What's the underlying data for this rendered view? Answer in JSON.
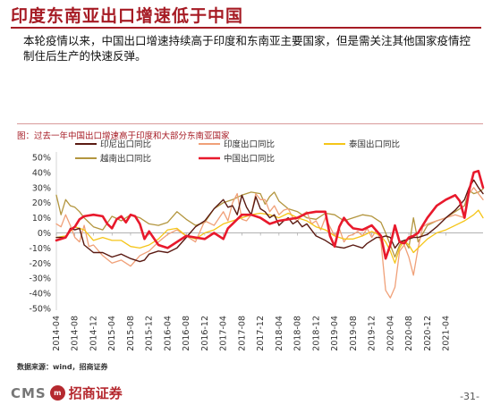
{
  "slide": {
    "title": "印度东南亚出口增速低于中国",
    "body": "本轮疫情以来，中国出口增速持续高于印度和东南亚主要国家，但是需关注其他国家疫情控制住后生产的快速反弹。",
    "source": "数据来源：wind，招商证券",
    "page_number": "-31-",
    "logo_text": "CMS",
    "logo_cn": "招商证券"
  },
  "chart_data": {
    "type": "line",
    "title": "图：过去一年中国出口增速高于印度和大部分东南亚国家",
    "y_ticks": [
      "50%",
      "40%",
      "30%",
      "20%",
      "10%",
      "0%",
      "-10%",
      "-20%",
      "-30%",
      "-40%",
      "-50%"
    ],
    "ylim": [
      -50,
      50
    ],
    "x_tick_labels": [
      "2014-04",
      "2014-08",
      "2014-12",
      "2015-04",
      "2015-08",
      "2015-12",
      "2016-04",
      "2016-08",
      "2016-12",
      "2017-04",
      "2017-08",
      "2017-12",
      "2018-04",
      "2018-08",
      "2018-12",
      "2019-04",
      "2019-08",
      "2019-12",
      "2020-04",
      "2020-08",
      "2020-12",
      "2021-04"
    ],
    "x_start": "2014-04",
    "x_end": "2021-05",
    "series": [
      {
        "name": "印尼出口同比",
        "color": "#5a1a12",
        "width": 1.4,
        "values": [
          [
            0,
            -3
          ],
          [
            2,
            -3
          ],
          [
            3,
            3
          ],
          [
            4,
            2
          ],
          [
            5,
            3
          ],
          [
            6,
            -8
          ],
          [
            8,
            -13
          ],
          [
            10,
            -13
          ],
          [
            12,
            -16
          ],
          [
            14,
            -14
          ],
          [
            16,
            -17
          ],
          [
            18,
            -19
          ],
          [
            19,
            -18
          ],
          [
            20,
            -14
          ],
          [
            22,
            -12
          ],
          [
            24,
            -13
          ],
          [
            26,
            -10
          ],
          [
            28,
            -3
          ],
          [
            30,
            4
          ],
          [
            32,
            8
          ],
          [
            34,
            16
          ],
          [
            36,
            22
          ],
          [
            37,
            17
          ],
          [
            38,
            18
          ],
          [
            39,
            12
          ],
          [
            40,
            25
          ],
          [
            41,
            17
          ],
          [
            42,
            12
          ],
          [
            43,
            24
          ],
          [
            44,
            16
          ],
          [
            45,
            14
          ],
          [
            46,
            10
          ],
          [
            47,
            12
          ],
          [
            48,
            5
          ],
          [
            49,
            8
          ],
          [
            50,
            10
          ],
          [
            51,
            6
          ],
          [
            52,
            8
          ],
          [
            53,
            4
          ],
          [
            54,
            6
          ],
          [
            56,
            -2
          ],
          [
            58,
            -5
          ],
          [
            60,
            -9
          ],
          [
            62,
            -10
          ],
          [
            64,
            -8
          ],
          [
            66,
            -10
          ],
          [
            67,
            -7
          ],
          [
            68,
            -5
          ],
          [
            69,
            -3
          ],
          [
            70,
            -3
          ],
          [
            71,
            -2
          ],
          [
            72,
            -3
          ],
          [
            73,
            -10
          ],
          [
            74,
            -6
          ],
          [
            75,
            -5
          ],
          [
            76,
            -4
          ],
          [
            77,
            -3
          ],
          [
            78,
            -3
          ],
          [
            79,
            -2
          ],
          [
            80,
            -1
          ],
          [
            82,
            4
          ],
          [
            84,
            10
          ],
          [
            86,
            15
          ],
          [
            88,
            22
          ],
          [
            89,
            30
          ],
          [
            90,
            35
          ],
          [
            91,
            30
          ],
          [
            92,
            26
          ]
        ]
      },
      {
        "name": "印度出口同比",
        "color": "#f0a078",
        "width": 1.3,
        "values": [
          [
            0,
            6
          ],
          [
            1,
            4
          ],
          [
            2,
            12
          ],
          [
            3,
            5
          ],
          [
            4,
            -3
          ],
          [
            5,
            -6
          ],
          [
            6,
            5
          ],
          [
            7,
            -9
          ],
          [
            8,
            -8
          ],
          [
            10,
            -15
          ],
          [
            12,
            -20
          ],
          [
            14,
            -18
          ],
          [
            16,
            -22
          ],
          [
            18,
            -15
          ],
          [
            20,
            -12
          ],
          [
            22,
            -6
          ],
          [
            24,
            -1
          ],
          [
            26,
            2
          ],
          [
            28,
            -2
          ],
          [
            30,
            -6
          ],
          [
            32,
            8
          ],
          [
            34,
            5
          ],
          [
            36,
            14
          ],
          [
            37,
            8
          ],
          [
            38,
            20
          ],
          [
            39,
            26
          ],
          [
            40,
            9
          ],
          [
            41,
            8
          ],
          [
            42,
            12
          ],
          [
            43,
            26
          ],
          [
            44,
            22
          ],
          [
            45,
            22
          ],
          [
            46,
            14
          ],
          [
            47,
            18
          ],
          [
            48,
            12
          ],
          [
            49,
            15
          ],
          [
            50,
            16
          ],
          [
            51,
            10
          ],
          [
            52,
            8
          ],
          [
            53,
            12
          ],
          [
            54,
            14
          ],
          [
            55,
            6
          ],
          [
            56,
            8
          ],
          [
            57,
            2
          ],
          [
            58,
            10
          ],
          [
            59,
            4
          ],
          [
            60,
            -2
          ],
          [
            61,
            3
          ],
          [
            62,
            -6
          ],
          [
            63,
            -2
          ],
          [
            64,
            -1
          ],
          [
            65,
            1
          ],
          [
            66,
            -2
          ],
          [
            67,
            3
          ],
          [
            68,
            -3
          ],
          [
            69,
            2
          ],
          [
            70,
            -6
          ],
          [
            71,
            -38
          ],
          [
            72,
            -43
          ],
          [
            73,
            -36
          ],
          [
            74,
            -12
          ],
          [
            75,
            -8
          ],
          [
            76,
            -16
          ],
          [
            77,
            -28
          ],
          [
            78,
            -10
          ],
          [
            79,
            4
          ],
          [
            80,
            6
          ],
          [
            82,
            8
          ],
          [
            84,
            10
          ],
          [
            86,
            12
          ],
          [
            88,
            10
          ],
          [
            89,
            26
          ],
          [
            90,
            30
          ],
          [
            91,
            26
          ],
          [
            92,
            22
          ]
        ]
      },
      {
        "name": "泰国出口同比",
        "color": "#f5c518",
        "width": 1.3,
        "values": [
          [
            0,
            -3
          ],
          [
            2,
            -2
          ],
          [
            4,
            4
          ],
          [
            6,
            2
          ],
          [
            8,
            -5
          ],
          [
            10,
            -3
          ],
          [
            12,
            -5
          ],
          [
            14,
            -5
          ],
          [
            16,
            -9
          ],
          [
            18,
            -10
          ],
          [
            20,
            -8
          ],
          [
            22,
            -4
          ],
          [
            24,
            2
          ],
          [
            26,
            3
          ],
          [
            28,
            -2
          ],
          [
            30,
            -4
          ],
          [
            32,
            0
          ],
          [
            34,
            2
          ],
          [
            36,
            6
          ],
          [
            38,
            8
          ],
          [
            40,
            10
          ],
          [
            42,
            12
          ],
          [
            44,
            13
          ],
          [
            46,
            12
          ],
          [
            48,
            10
          ],
          [
            50,
            13
          ],
          [
            52,
            10
          ],
          [
            54,
            8
          ],
          [
            56,
            4
          ],
          [
            58,
            2
          ],
          [
            60,
            -2
          ],
          [
            62,
            -4
          ],
          [
            64,
            -4
          ],
          [
            66,
            -2
          ],
          [
            68,
            1
          ],
          [
            70,
            -2
          ],
          [
            71,
            -6
          ],
          [
            72,
            -12
          ],
          [
            73,
            -20
          ],
          [
            74,
            -10
          ],
          [
            75,
            -5
          ],
          [
            76,
            -8
          ],
          [
            77,
            -13
          ],
          [
            78,
            -10
          ],
          [
            80,
            -4
          ],
          [
            82,
            0
          ],
          [
            84,
            2
          ],
          [
            86,
            5
          ],
          [
            88,
            8
          ],
          [
            90,
            12
          ],
          [
            91,
            15
          ],
          [
            92,
            10
          ]
        ]
      },
      {
        "name": "越南出口同比",
        "color": "#b3963f",
        "width": 1.3,
        "values": [
          [
            0,
            25
          ],
          [
            1,
            12
          ],
          [
            2,
            22
          ],
          [
            3,
            18
          ],
          [
            4,
            17
          ],
          [
            5,
            14
          ],
          [
            6,
            10
          ],
          [
            8,
            4
          ],
          [
            10,
            2
          ],
          [
            12,
            11
          ],
          [
            14,
            8
          ],
          [
            16,
            12
          ],
          [
            18,
            10
          ],
          [
            20,
            6
          ],
          [
            22,
            5
          ],
          [
            24,
            7
          ],
          [
            26,
            14
          ],
          [
            28,
            9
          ],
          [
            30,
            5
          ],
          [
            32,
            7
          ],
          [
            34,
            16
          ],
          [
            36,
            20
          ],
          [
            38,
            22
          ],
          [
            40,
            25
          ],
          [
            42,
            27
          ],
          [
            44,
            26
          ],
          [
            45,
            19
          ],
          [
            46,
            24
          ],
          [
            47,
            27
          ],
          [
            48,
            21
          ],
          [
            50,
            16
          ],
          [
            52,
            14
          ],
          [
            54,
            10
          ],
          [
            56,
            9
          ],
          [
            58,
            13
          ],
          [
            60,
            12
          ],
          [
            62,
            8
          ],
          [
            64,
            10
          ],
          [
            66,
            12
          ],
          [
            68,
            11
          ],
          [
            70,
            7
          ],
          [
            71,
            0
          ],
          [
            72,
            -8
          ],
          [
            73,
            -16
          ],
          [
            74,
            -8
          ],
          [
            75,
            -5
          ],
          [
            76,
            -10
          ],
          [
            77,
            10
          ],
          [
            78,
            -6
          ],
          [
            80,
            5
          ],
          [
            82,
            8
          ],
          [
            84,
            10
          ],
          [
            86,
            14
          ],
          [
            88,
            18
          ],
          [
            89,
            28
          ],
          [
            90,
            26
          ],
          [
            91,
            27
          ],
          [
            92,
            29
          ]
        ]
      },
      {
        "name": "中国出口同比",
        "color": "#e8192c",
        "width": 2.6,
        "values": [
          [
            0,
            -5
          ],
          [
            1,
            -4
          ],
          [
            2,
            -3
          ],
          [
            3,
            2
          ],
          [
            4,
            4
          ],
          [
            5,
            9
          ],
          [
            6,
            11
          ],
          [
            8,
            12
          ],
          [
            10,
            11
          ],
          [
            11,
            6
          ],
          [
            12,
            3
          ],
          [
            13,
            9
          ],
          [
            14,
            11
          ],
          [
            15,
            7
          ],
          [
            16,
            12
          ],
          [
            17,
            11
          ],
          [
            18,
            6
          ],
          [
            19,
            -4
          ],
          [
            20,
            1
          ],
          [
            22,
            -8
          ],
          [
            24,
            -10
          ],
          [
            26,
            -6
          ],
          [
            28,
            -2
          ],
          [
            30,
            -3
          ],
          [
            32,
            -4
          ],
          [
            34,
            0
          ],
          [
            36,
            -4
          ],
          [
            37,
            3
          ],
          [
            38,
            6
          ],
          [
            40,
            12
          ],
          [
            42,
            12
          ],
          [
            44,
            10
          ],
          [
            46,
            6
          ],
          [
            48,
            8
          ],
          [
            50,
            9
          ],
          [
            52,
            10
          ],
          [
            54,
            13
          ],
          [
            56,
            14
          ],
          [
            58,
            14
          ],
          [
            59,
            -2
          ],
          [
            60,
            -9
          ],
          [
            61,
            4
          ],
          [
            62,
            10
          ],
          [
            63,
            6
          ],
          [
            64,
            3
          ],
          [
            66,
            2
          ],
          [
            68,
            5
          ],
          [
            70,
            -2
          ],
          [
            71,
            -17
          ],
          [
            72,
            -8
          ],
          [
            73,
            5
          ],
          [
            74,
            -6
          ],
          [
            75,
            -7
          ],
          [
            76,
            -3
          ],
          [
            77,
            -2
          ],
          [
            78,
            0
          ],
          [
            80,
            10
          ],
          [
            82,
            18
          ],
          [
            84,
            22
          ],
          [
            86,
            25
          ],
          [
            87,
            21
          ],
          [
            88,
            10
          ],
          [
            89,
            28
          ],
          [
            90,
            40
          ],
          [
            91,
            41
          ],
          [
            92,
            30
          ]
        ]
      }
    ],
    "legend_rows": [
      [
        "印尼出口同比",
        "印度出口同比",
        "泰国出口同比"
      ],
      [
        "越南出口同比",
        "中国出口同比"
      ]
    ]
  }
}
